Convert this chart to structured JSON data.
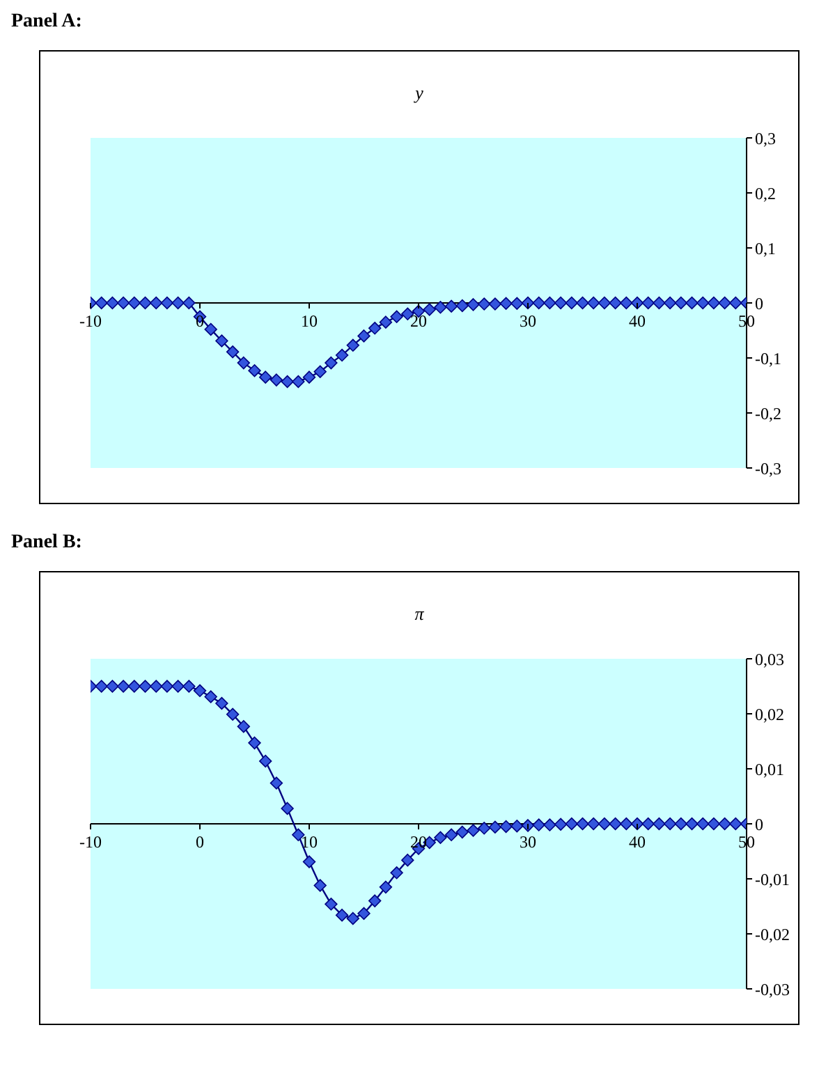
{
  "chart_data": [
    {
      "type": "line",
      "title": "y",
      "annotations": [
        "Panel A:"
      ],
      "x": [
        -10,
        -9,
        -8,
        -7,
        -6,
        -5,
        -4,
        -3,
        -2,
        -1,
        0,
        1,
        2,
        3,
        4,
        5,
        6,
        7,
        8,
        9,
        10,
        11,
        12,
        13,
        14,
        15,
        16,
        17,
        18,
        19,
        20,
        21,
        22,
        23,
        24,
        25,
        26,
        27,
        28,
        29,
        30,
        31,
        32,
        33,
        34,
        35,
        36,
        37,
        38,
        39,
        40,
        41,
        42,
        43,
        44,
        45,
        46,
        47,
        48,
        49,
        50
      ],
      "series": [
        {
          "color": "#3355dd",
          "values": [
            0,
            0,
            0,
            0,
            0,
            0,
            0,
            0,
            0,
            0,
            -0.025,
            -0.048,
            -0.069,
            -0.089,
            -0.109,
            -0.123,
            -0.135,
            -0.14,
            -0.143,
            -0.143,
            -0.135,
            -0.125,
            -0.109,
            -0.095,
            -0.077,
            -0.06,
            -0.046,
            -0.035,
            -0.025,
            -0.02,
            -0.015,
            -0.012,
            -0.008,
            -0.006,
            -0.005,
            -0.003,
            -0.002,
            -0.002,
            -0.001,
            -0.001,
            0,
            0,
            0,
            0,
            0,
            0,
            0,
            0,
            0,
            0,
            0,
            0,
            0,
            0,
            0,
            0,
            0,
            0,
            0,
            0,
            0
          ]
        }
      ],
      "xlim": [
        -10,
        50
      ],
      "xticks": [
        -10,
        0,
        10,
        20,
        30,
        40,
        50
      ],
      "ylim": [
        -0.3,
        0.3
      ],
      "yticks": [
        {
          "value": -0.3,
          "label": "-0,3"
        },
        {
          "value": -0.2,
          "label": "-0,2"
        },
        {
          "value": -0.1,
          "label": "-0,1"
        },
        {
          "value": 0,
          "label": "0"
        },
        {
          "value": 0.1,
          "label": "0,1"
        },
        {
          "value": 0.2,
          "label": "0,2"
        },
        {
          "value": 0.3,
          "label": "0,3"
        }
      ],
      "marker": "diamond",
      "grid": false,
      "legend": false
    },
    {
      "type": "line",
      "title": "π",
      "annotations": [
        "Panel B:"
      ],
      "x": [
        -10,
        -9,
        -8,
        -7,
        -6,
        -5,
        -4,
        -3,
        -2,
        -1,
        0,
        1,
        2,
        3,
        4,
        5,
        6,
        7,
        8,
        9,
        10,
        11,
        12,
        13,
        14,
        15,
        16,
        17,
        18,
        19,
        20,
        21,
        22,
        23,
        24,
        25,
        26,
        27,
        28,
        29,
        30,
        31,
        32,
        33,
        34,
        35,
        36,
        37,
        38,
        39,
        40,
        41,
        42,
        43,
        44,
        45,
        46,
        47,
        48,
        49,
        50
      ],
      "series": [
        {
          "color": "#3355dd",
          "values": [
            0.025,
            0.025,
            0.025,
            0.025,
            0.025,
            0.025,
            0.025,
            0.025,
            0.025,
            0.025,
            0.0242,
            0.0231,
            0.0219,
            0.0199,
            0.0177,
            0.0147,
            0.0114,
            0.0074,
            0.0028,
            -0.002,
            -0.0069,
            -0.0112,
            -0.0146,
            -0.0166,
            -0.0172,
            -0.0163,
            -0.014,
            -0.0115,
            -0.0089,
            -0.0066,
            -0.0045,
            -0.0034,
            -0.0025,
            -0.002,
            -0.0015,
            -0.0012,
            -0.0008,
            -0.0006,
            -0.0005,
            -0.0004,
            -0.0003,
            -0.0002,
            -0.0002,
            -0.0001,
            0,
            0,
            0,
            0,
            0,
            0,
            0,
            0,
            0,
            0,
            0,
            0,
            0,
            0,
            0,
            0,
            0
          ]
        }
      ],
      "xlim": [
        -10,
        50
      ],
      "xticks": [
        -10,
        0,
        10,
        20,
        30,
        40,
        50
      ],
      "ylim": [
        -0.03,
        0.03
      ],
      "yticks": [
        {
          "value": -0.03,
          "label": "-0,03"
        },
        {
          "value": -0.02,
          "label": "-0,02"
        },
        {
          "value": -0.01,
          "label": "-0,01"
        },
        {
          "value": 0,
          "label": "0"
        },
        {
          "value": 0.01,
          "label": "0,01"
        },
        {
          "value": 0.02,
          "label": "0,02"
        },
        {
          "value": 0.03,
          "label": "0,03"
        }
      ],
      "marker": "diamond",
      "grid": false,
      "legend": false
    }
  ]
}
